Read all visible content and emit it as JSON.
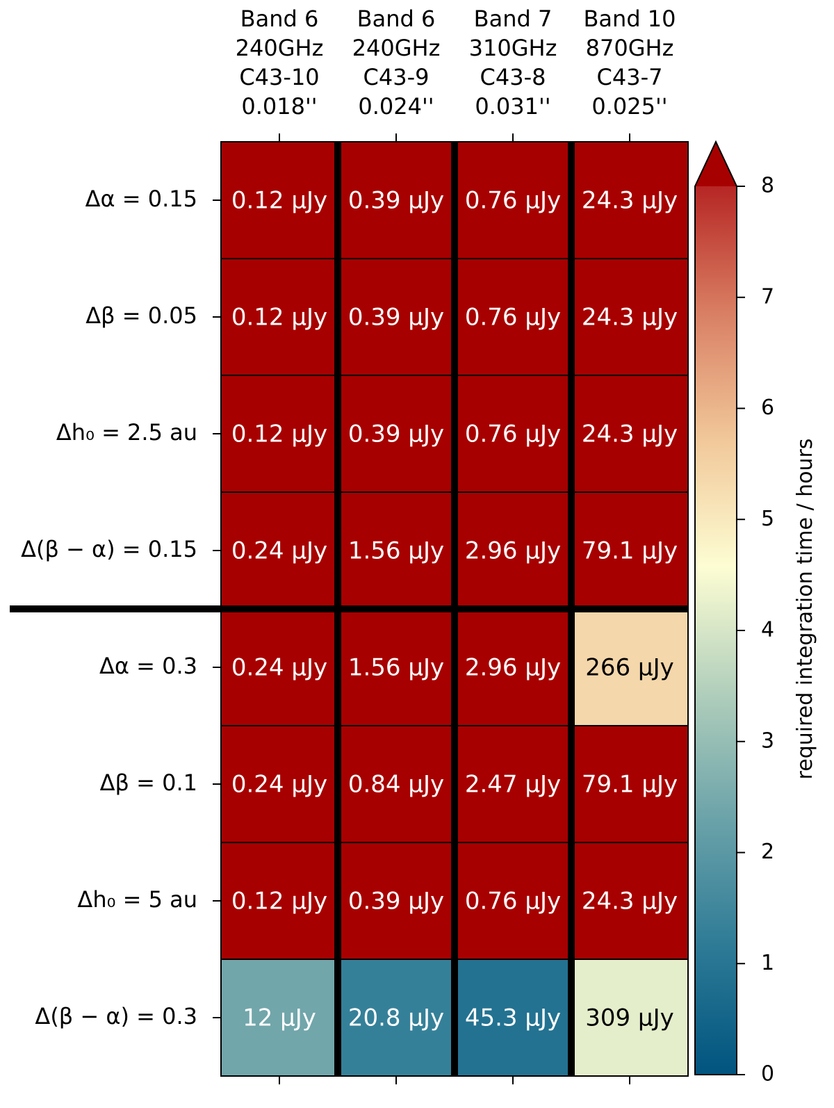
{
  "chart_data": {
    "type": "heatmap",
    "columns": [
      [
        "Band 6",
        "240GHz",
        "C43-10",
        "0.018''"
      ],
      [
        "Band 6",
        "240GHz",
        "C43-9",
        "0.024''"
      ],
      [
        "Band 7",
        "310GHz",
        "C43-8",
        "0.031''"
      ],
      [
        "Band 10",
        "870GHz",
        "C43-7",
        "0.025''"
      ]
    ],
    "rows": [
      "Δα = 0.15",
      "Δβ = 0.05",
      "Δh₀ = 2.5 au",
      "Δ(β − α) = 0.15",
      "Δα = 0.3",
      "Δβ = 0.1",
      "Δh₀ = 5 au",
      "Δ(β − α) = 0.3"
    ],
    "cell_labels": [
      [
        "0.12 μJy",
        "0.39 μJy",
        "0.76 μJy",
        "24.3 μJy"
      ],
      [
        "0.12 μJy",
        "0.39 μJy",
        "0.76 μJy",
        "24.3 μJy"
      ],
      [
        "0.12 μJy",
        "0.39 μJy",
        "0.76 μJy",
        "24.3 μJy"
      ],
      [
        "0.24 μJy",
        "1.56 μJy",
        "2.96 μJy",
        "79.1 μJy"
      ],
      [
        "0.24 μJy",
        "1.56 μJy",
        "2.96 μJy",
        "266 μJy"
      ],
      [
        "0.24 μJy",
        "0.84 μJy",
        "2.47 μJy",
        "79.1 μJy"
      ],
      [
        "0.12 μJy",
        "0.39 μJy",
        "0.76 μJy",
        "24.3 μJy"
      ],
      [
        "12 μJy",
        "20.8 μJy",
        "45.3 μJy",
        "309 μJy"
      ]
    ],
    "values_hours": [
      [
        8.5,
        8.5,
        8.5,
        8.5
      ],
      [
        8.5,
        8.5,
        8.5,
        8.5
      ],
      [
        8.5,
        8.5,
        8.5,
        8.5
      ],
      [
        8.5,
        8.5,
        8.5,
        8.5
      ],
      [
        8.5,
        8.5,
        8.5,
        5.4
      ],
      [
        8.5,
        8.5,
        8.5,
        8.5
      ],
      [
        8.5,
        8.5,
        8.5,
        8.5
      ],
      [
        2.4,
        1.3,
        0.9,
        4.2
      ]
    ],
    "colorbar": {
      "label": "required integration time / hours",
      "range": [
        0,
        8
      ],
      "ticks": [
        "0",
        "1",
        "2",
        "3",
        "4",
        "5",
        "6",
        "7",
        "8"
      ],
      "extend": "max",
      "colormap": [
        "#00547f",
        "#2d7a96",
        "#6aa2a9",
        "#b0cebb",
        "#fdfdd3",
        "#f1c89a",
        "#d97f63",
        "#b62624",
        "#a70000"
      ]
    },
    "text_colors": {
      "dark": "#000000",
      "light": "#ffffff"
    }
  }
}
